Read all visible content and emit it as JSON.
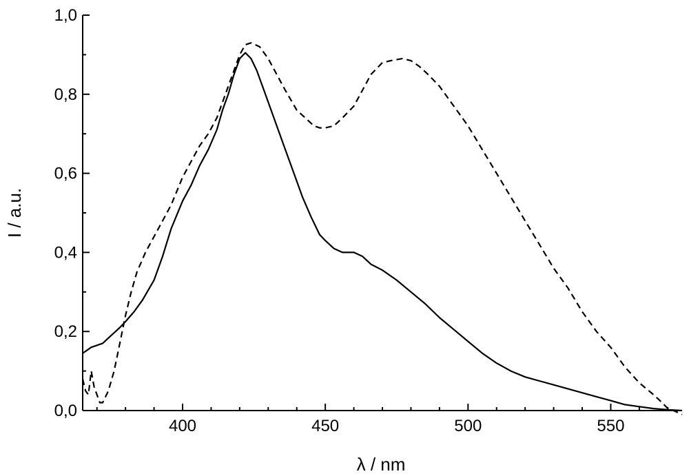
{
  "chart_data": {
    "type": "line",
    "title": "",
    "xlabel": "λ / nm",
    "ylabel": "I / a.u.",
    "xlim": [
      365,
      575
    ],
    "ylim": [
      0,
      1.0
    ],
    "x_ticks": [
      {
        "value": 400,
        "label": "400"
      },
      {
        "value": 450,
        "label": "450"
      },
      {
        "value": 500,
        "label": "500"
      },
      {
        "value": 550,
        "label": "550"
      }
    ],
    "y_ticks": [
      {
        "value": 0.0,
        "label": "0,0"
      },
      {
        "value": 0.2,
        "label": "0,2"
      },
      {
        "value": 0.4,
        "label": "0,4"
      },
      {
        "value": 0.6,
        "label": "0,6"
      },
      {
        "value": 0.8,
        "label": "0,8"
      },
      {
        "value": 1.0,
        "label": "1,0"
      }
    ],
    "x_minor_step": 10,
    "y_minor_step": 0.1,
    "grid": false,
    "series": [
      {
        "style": "solid",
        "color": "#000000",
        "x": [
          365,
          368,
          372,
          375,
          378,
          380,
          383,
          386,
          390,
          393,
          396,
          400,
          403,
          406,
          409,
          412,
          414,
          416,
          418,
          420,
          422,
          424,
          426,
          428,
          430,
          433,
          436,
          439,
          442,
          445,
          448,
          450,
          453,
          456,
          460,
          463,
          466,
          470,
          475,
          480,
          485,
          490,
          495,
          500,
          505,
          510,
          515,
          520,
          525,
          530,
          535,
          540,
          545,
          550,
          555,
          560,
          565,
          570,
          575
        ],
        "y": [
          0.145,
          0.16,
          0.17,
          0.19,
          0.21,
          0.225,
          0.25,
          0.28,
          0.33,
          0.39,
          0.46,
          0.53,
          0.57,
          0.62,
          0.66,
          0.71,
          0.76,
          0.8,
          0.85,
          0.89,
          0.905,
          0.89,
          0.86,
          0.82,
          0.78,
          0.72,
          0.66,
          0.6,
          0.54,
          0.49,
          0.445,
          0.43,
          0.41,
          0.4,
          0.4,
          0.39,
          0.37,
          0.355,
          0.33,
          0.3,
          0.27,
          0.235,
          0.205,
          0.175,
          0.145,
          0.12,
          0.1,
          0.085,
          0.075,
          0.065,
          0.055,
          0.045,
          0.035,
          0.025,
          0.015,
          0.01,
          0.005,
          0.002,
          0.0
        ]
      },
      {
        "style": "dashed",
        "color": "#000000",
        "x": [
          365,
          366,
          367,
          368,
          369,
          370,
          371,
          372,
          374,
          376,
          378,
          380,
          382,
          384,
          387,
          390,
          393,
          396,
          400,
          403,
          406,
          409,
          412,
          414,
          416,
          418,
          420,
          422,
          424,
          427,
          430,
          433,
          436,
          440,
          443,
          446,
          448,
          450,
          453,
          456,
          460,
          463,
          466,
          470,
          473,
          477,
          480,
          483,
          486,
          490,
          495,
          500,
          505,
          510,
          515,
          520,
          525,
          530,
          535,
          540,
          545,
          550,
          555,
          560,
          565,
          568,
          570,
          572,
          575
        ],
        "y": [
          0.08,
          0.05,
          0.04,
          0.1,
          0.06,
          0.04,
          0.02,
          0.02,
          0.05,
          0.1,
          0.17,
          0.24,
          0.3,
          0.35,
          0.4,
          0.44,
          0.48,
          0.52,
          0.59,
          0.63,
          0.67,
          0.7,
          0.74,
          0.78,
          0.82,
          0.86,
          0.9,
          0.925,
          0.93,
          0.92,
          0.89,
          0.85,
          0.81,
          0.76,
          0.74,
          0.72,
          0.715,
          0.715,
          0.72,
          0.74,
          0.77,
          0.81,
          0.85,
          0.88,
          0.885,
          0.89,
          0.885,
          0.87,
          0.85,
          0.82,
          0.77,
          0.72,
          0.66,
          0.6,
          0.54,
          0.48,
          0.42,
          0.36,
          0.31,
          0.25,
          0.2,
          0.16,
          0.11,
          0.07,
          0.04,
          0.02,
          0.005,
          0.0,
          -0.01
        ]
      }
    ]
  }
}
